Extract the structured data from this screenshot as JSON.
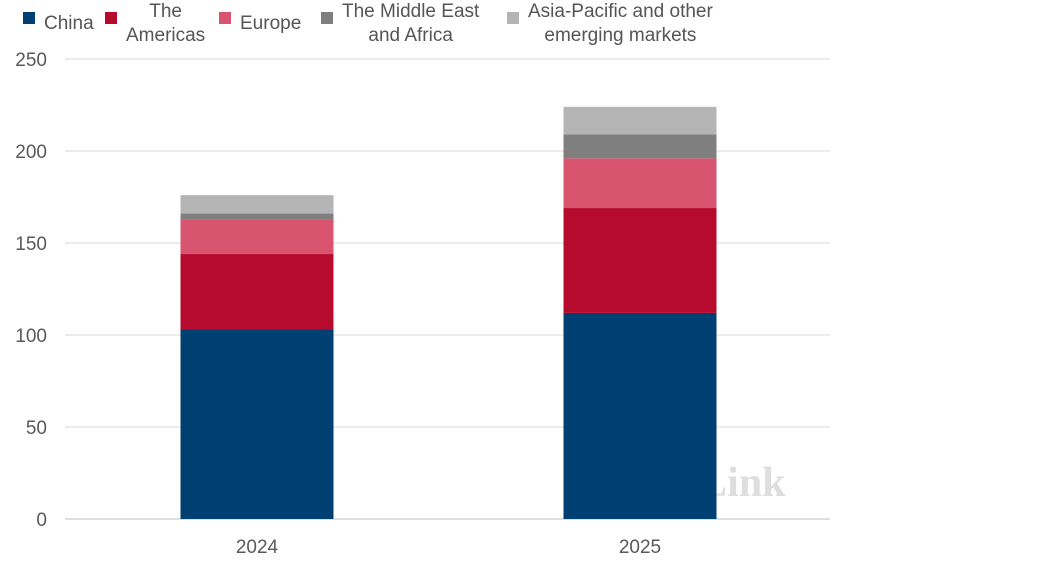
{
  "chart_data": {
    "type": "bar",
    "stacked": true,
    "categories": [
      "2024",
      "2025"
    ],
    "series": [
      {
        "name": "China",
        "color": "#003f72",
        "values": [
          103,
          112
        ]
      },
      {
        "name": "The Americas",
        "color": "#b70b2d",
        "values": [
          41,
          57
        ]
      },
      {
        "name": "Europe",
        "color": "#d9546e",
        "values": [
          19,
          27
        ]
      },
      {
        "name": "The Middle East and Africa",
        "color": "#7f7f7f",
        "values": [
          3,
          13
        ]
      },
      {
        "name": "Asia-Pacific and other emerging markets",
        "color": "#b4b4b4",
        "values": [
          10,
          15
        ]
      }
    ],
    "ylim": [
      0,
      250
    ],
    "yticks": [
      0,
      50,
      100,
      150,
      200,
      250
    ],
    "grid": true,
    "legend_position": "top",
    "legend_labels": [
      "China",
      "The\nAmericas",
      "Europe",
      "The Middle East\nand Africa",
      "Asia-Pacific and other\nemerging markets"
    ],
    "watermark": "InfoLink"
  }
}
